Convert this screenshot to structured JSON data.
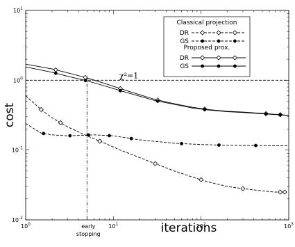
{
  "chart_data": {
    "type": "line",
    "xlabel": "iterations",
    "ylabel": "cost",
    "xscale": "log",
    "yscale": "log",
    "xlim": [
      1,
      1000
    ],
    "ylim": [
      0.01,
      10
    ],
    "x_ticks": [
      1,
      10,
      100,
      1000
    ],
    "x_tick_labels": [
      "10",
      "10",
      "10",
      "10"
    ],
    "x_tick_exps": [
      "0",
      "1",
      "2",
      "3"
    ],
    "y_ticks": [
      0.01,
      0.1,
      1,
      10
    ],
    "y_tick_labels": [
      "10",
      "10",
      "10",
      "10"
    ],
    "y_tick_exps": [
      "-2",
      "-1",
      "0",
      "1"
    ],
    "grid": false,
    "legend_position": "top-right",
    "legend_groups": [
      "Classical projection",
      "Proposed prox."
    ],
    "annotations": {
      "chi_label": "χ²=1",
      "chi_line_y": 1.0,
      "early_stopping_label": [
        "early",
        "stopping"
      ],
      "early_stopping_x": 5.0
    },
    "series": [
      {
        "name": "DR",
        "group": "Classical projection",
        "style": "dashed",
        "marker": "open-diamond",
        "x": [
          1,
          1.5,
          2,
          3,
          5,
          8,
          12,
          20,
          30,
          50,
          80,
          120,
          200,
          300,
          500,
          700,
          900
        ],
        "values": [
          0.6,
          0.38,
          0.29,
          0.215,
          0.16,
          0.125,
          0.1,
          0.078,
          0.064,
          0.05,
          0.041,
          0.035,
          0.03,
          0.028,
          0.026,
          0.025,
          0.025
        ],
        "marker_x": [
          1.5,
          2.5,
          7,
          30,
          100,
          300,
          800,
          900
        ]
      },
      {
        "name": "GS",
        "group": "Classical projection",
        "style": "dashed",
        "marker": "filled-circle",
        "x": [
          1,
          1.5,
          2,
          3,
          4,
          6,
          10,
          20,
          50,
          100,
          200,
          500,
          1000
        ],
        "values": [
          0.24,
          0.175,
          0.165,
          0.16,
          0.162,
          0.165,
          0.16,
          0.14,
          0.125,
          0.12,
          0.117,
          0.116,
          0.115
        ],
        "marker_x": [
          1.6,
          3.2,
          5.2,
          9,
          16,
          60,
          160,
          420
        ]
      },
      {
        "name": "DR",
        "group": "Proposed prox.",
        "style": "solid",
        "marker": "open-diamond",
        "x": [
          1,
          2,
          3,
          5,
          8,
          12,
          20,
          30,
          50,
          80,
          120,
          200,
          300,
          500,
          700,
          1000
        ],
        "values": [
          1.7,
          1.45,
          1.28,
          1.08,
          0.9,
          0.76,
          0.62,
          0.53,
          0.46,
          0.41,
          0.38,
          0.36,
          0.35,
          0.335,
          0.325,
          0.315
        ],
        "marker_x": [
          2.2,
          4.8,
          12,
          32,
          110,
          550,
          800
        ]
      },
      {
        "name": "GS",
        "group": "Proposed prox.",
        "style": "solid",
        "marker": "filled-circle",
        "x": [
          1,
          2,
          3,
          5,
          8,
          12,
          20,
          30,
          50,
          80,
          120,
          200,
          300,
          500,
          700,
          1000
        ],
        "values": [
          1.55,
          1.3,
          1.14,
          0.98,
          0.83,
          0.71,
          0.59,
          0.51,
          0.45,
          0.4,
          0.375,
          0.355,
          0.345,
          0.33,
          0.322,
          0.312
        ],
        "marker_x": [
          2.2,
          4.8,
          12,
          32,
          110,
          550,
          800
        ]
      }
    ]
  }
}
